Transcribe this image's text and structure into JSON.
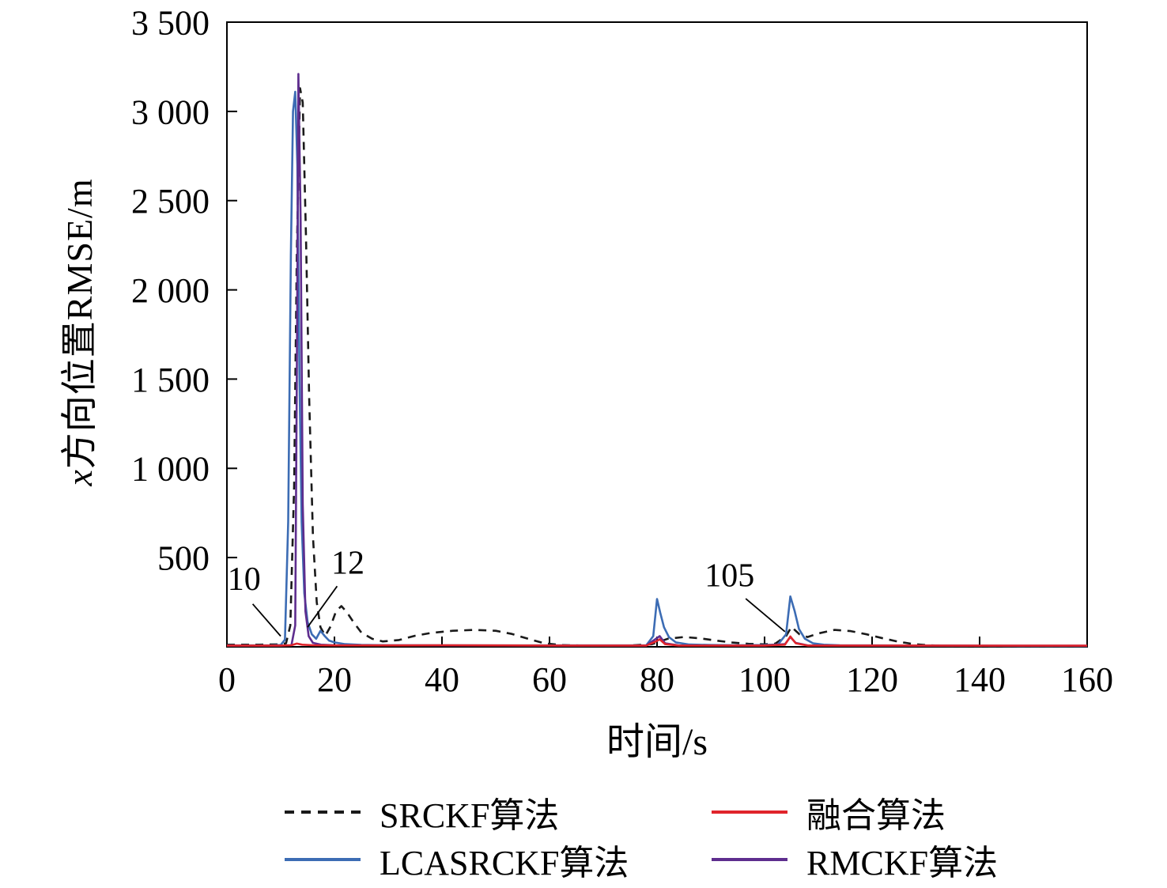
{
  "figure": {
    "ylabel_italic": "x",
    "ylabel_rest": "方向位置RMSE/m",
    "xlabel": "时间/s"
  },
  "chart_data": {
    "type": "line",
    "title": "",
    "xlabel": "时间/s",
    "ylabel": "x方向位置RMSE/m",
    "xlim": [
      0,
      160
    ],
    "ylim": [
      0,
      3500
    ],
    "grid": false,
    "legend_position": "below-plot, 2 columns, no frame",
    "x_ticks": [
      0,
      20,
      40,
      60,
      80,
      100,
      120,
      140,
      160
    ],
    "x_tick_labels": [
      "0",
      "20",
      "40",
      "60",
      "80",
      "100",
      "120",
      "140",
      "160"
    ],
    "y_ticks": [
      500,
      1000,
      1500,
      2000,
      2500,
      3000,
      3500
    ],
    "y_tick_labels": [
      "500",
      "1 000",
      "1 500",
      "2 000",
      "2 500",
      "3 000",
      "3 500"
    ],
    "draw_order": [
      0,
      1,
      3,
      2
    ],
    "series": [
      {
        "id": "srckf",
        "name": "SRCKF算法",
        "color": "#1a1a1a",
        "dash": "10 8",
        "points": [
          [
            0,
            12
          ],
          [
            6,
            12
          ],
          [
            10,
            14
          ],
          [
            11,
            20
          ],
          [
            11.8,
            120
          ],
          [
            12.5,
            900
          ],
          [
            13,
            2200
          ],
          [
            13.6,
            3130
          ],
          [
            14.1,
            3050
          ],
          [
            14.7,
            2300
          ],
          [
            15.3,
            1400
          ],
          [
            16,
            620
          ],
          [
            16.7,
            250
          ],
          [
            17.4,
            110
          ],
          [
            18.3,
            62
          ],
          [
            19.3,
            115
          ],
          [
            20.3,
            200
          ],
          [
            21.3,
            228
          ],
          [
            22.3,
            195
          ],
          [
            23.5,
            140
          ],
          [
            25,
            80
          ],
          [
            27,
            45
          ],
          [
            29,
            30
          ],
          [
            32,
            38
          ],
          [
            35,
            62
          ],
          [
            38,
            78
          ],
          [
            42,
            90
          ],
          [
            46,
            95
          ],
          [
            50,
            90
          ],
          [
            53,
            72
          ],
          [
            56,
            45
          ],
          [
            59,
            20
          ],
          [
            62,
            10
          ],
          [
            66,
            7
          ],
          [
            70,
            6
          ],
          [
            75,
            8
          ],
          [
            79,
            14
          ],
          [
            82,
            45
          ],
          [
            85,
            55
          ],
          [
            88,
            48
          ],
          [
            91,
            35
          ],
          [
            94,
            24
          ],
          [
            97,
            17
          ],
          [
            100,
            14
          ],
          [
            102,
            18
          ],
          [
            104,
            60
          ],
          [
            105,
            112
          ],
          [
            106.5,
            70
          ],
          [
            108,
            55
          ],
          [
            110,
            75
          ],
          [
            113,
            95
          ],
          [
            116,
            88
          ],
          [
            119,
            70
          ],
          [
            122,
            48
          ],
          [
            125,
            28
          ],
          [
            128,
            14
          ],
          [
            131,
            8
          ],
          [
            135,
            5
          ],
          [
            140,
            4
          ],
          [
            148,
            4
          ],
          [
            160,
            4
          ]
        ]
      },
      {
        "id": "lcasrckf",
        "name": "LCASRCKF算法",
        "color": "#3c6cb4",
        "dash": null,
        "points": [
          [
            0,
            8
          ],
          [
            8,
            8
          ],
          [
            10,
            10
          ],
          [
            10.8,
            40
          ],
          [
            11.4,
            700
          ],
          [
            11.9,
            2200
          ],
          [
            12.3,
            3000
          ],
          [
            12.7,
            3110
          ],
          [
            13.1,
            2700
          ],
          [
            13.5,
            1500
          ],
          [
            13.9,
            700
          ],
          [
            14.4,
            300
          ],
          [
            15,
            140
          ],
          [
            15.8,
            70
          ],
          [
            16.6,
            45
          ],
          [
            17.4,
            90
          ],
          [
            18.2,
            60
          ],
          [
            19,
            35
          ],
          [
            20,
            25
          ],
          [
            22,
            15
          ],
          [
            25,
            11
          ],
          [
            30,
            9
          ],
          [
            40,
            8
          ],
          [
            50,
            8
          ],
          [
            60,
            8
          ],
          [
            70,
            8
          ],
          [
            78,
            9
          ],
          [
            79.3,
            60
          ],
          [
            80,
            268
          ],
          [
            80.6,
            190
          ],
          [
            81.3,
            110
          ],
          [
            82.2,
            55
          ],
          [
            83.5,
            25
          ],
          [
            86,
            13
          ],
          [
            90,
            10
          ],
          [
            95,
            9
          ],
          [
            100,
            10
          ],
          [
            102.5,
            13
          ],
          [
            104,
            70
          ],
          [
            104.8,
            282
          ],
          [
            105.6,
            200
          ],
          [
            106.4,
            100
          ],
          [
            107.5,
            45
          ],
          [
            109,
            20
          ],
          [
            111,
            12
          ],
          [
            114,
            9
          ],
          [
            120,
            8
          ],
          [
            128,
            7
          ],
          [
            136,
            6
          ],
          [
            148,
            5
          ],
          [
            160,
            5
          ]
        ]
      },
      {
        "id": "fusion",
        "name": "融合算法",
        "color": "#e0242b",
        "dash": null,
        "points": [
          [
            0,
            7
          ],
          [
            10,
            7
          ],
          [
            12,
            9
          ],
          [
            13,
            18
          ],
          [
            14,
            12
          ],
          [
            16,
            9
          ],
          [
            20,
            8
          ],
          [
            30,
            8
          ],
          [
            40,
            9
          ],
          [
            50,
            8
          ],
          [
            60,
            7
          ],
          [
            78,
            7
          ],
          [
            79.8,
            30
          ],
          [
            80.5,
            42
          ],
          [
            81.5,
            15
          ],
          [
            84,
            7
          ],
          [
            100,
            7
          ],
          [
            103.8,
            12
          ],
          [
            104.8,
            58
          ],
          [
            105.8,
            20
          ],
          [
            108,
            7
          ],
          [
            120,
            7
          ],
          [
            140,
            6
          ],
          [
            160,
            6
          ]
        ]
      },
      {
        "id": "rmckf",
        "name": "RMCKF算法",
        "color": "#5e2d8e",
        "dash": null,
        "points": [
          [
            0,
            7
          ],
          [
            10,
            7
          ],
          [
            12,
            9
          ],
          [
            12.7,
            120
          ],
          [
            13,
            1500
          ],
          [
            13.3,
            3210
          ],
          [
            13.7,
            2400
          ],
          [
            14.1,
            800
          ],
          [
            14.6,
            200
          ],
          [
            15.2,
            60
          ],
          [
            16,
            22
          ],
          [
            17.5,
            12
          ],
          [
            20,
            9
          ],
          [
            25,
            8
          ],
          [
            40,
            8
          ],
          [
            60,
            7
          ],
          [
            78,
            7
          ],
          [
            79.8,
            45
          ],
          [
            80.5,
            60
          ],
          [
            81.5,
            20
          ],
          [
            84,
            8
          ],
          [
            100,
            7
          ],
          [
            103.8,
            15
          ],
          [
            104.8,
            55
          ],
          [
            105.8,
            22
          ],
          [
            108,
            8
          ],
          [
            120,
            7
          ],
          [
            140,
            6
          ],
          [
            160,
            6
          ]
        ]
      }
    ],
    "annotations": [
      {
        "text": "10",
        "text_xy": [
          3.2,
          320
        ],
        "line": [
          [
            4.8,
            240
          ],
          [
            10,
            60
          ]
        ]
      },
      {
        "text": "12",
        "text_xy": [
          22.5,
          410
        ],
        "line": [
          [
            20.5,
            340
          ],
          [
            15,
            110
          ]
        ]
      },
      {
        "text": "105",
        "text_xy": [
          93.5,
          340
        ],
        "line": [
          [
            96.5,
            270
          ],
          [
            103.8,
            85
          ]
        ]
      }
    ]
  }
}
